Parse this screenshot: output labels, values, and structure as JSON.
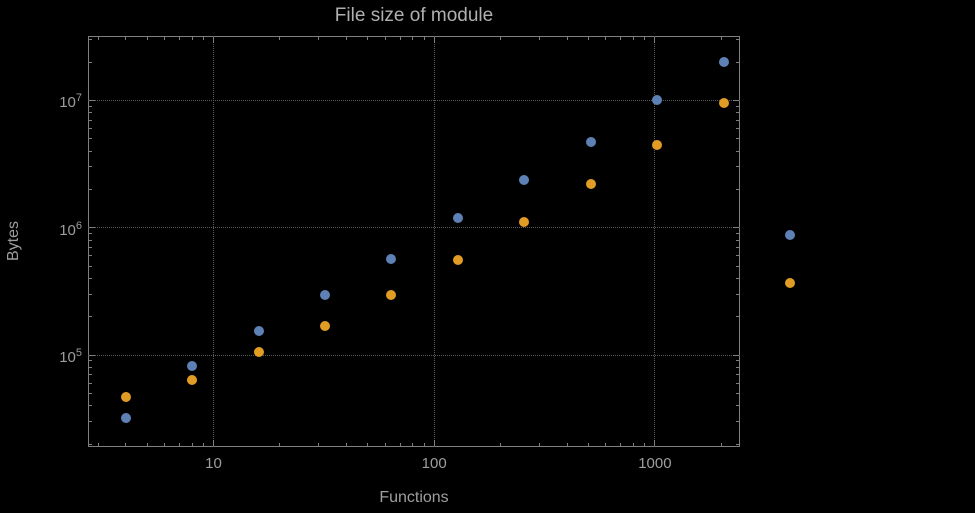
{
  "title": "File size of module",
  "colors": {
    "background": "#000000",
    "frame": "#7f7f7f",
    "gridline": "#5e5e5e",
    "text": "#9e9e9e",
    "title_text": "#b0b0b0",
    "series_blue": "#5e81b5",
    "series_orange": "#e19c24"
  },
  "chart_data": {
    "type": "scatter",
    "title": "File size of module",
    "xlabel": "Functions",
    "ylabel": "Bytes",
    "xscale": "log",
    "yscale": "log",
    "xlim": [
      2.7,
      2430
    ],
    "ylim": [
      19000,
      32000000
    ],
    "grid": "dotted",
    "legend": "none",
    "x_ticks": [
      {
        "value": 10,
        "label": "10"
      },
      {
        "value": 100,
        "label": "100"
      },
      {
        "value": 1000,
        "label": "1000"
      }
    ],
    "y_ticks": [
      {
        "value": 100000,
        "mantissa": "10",
        "exponent": "5"
      },
      {
        "value": 1000000,
        "mantissa": "10",
        "exponent": "6"
      },
      {
        "value": 10000000,
        "mantissa": "10",
        "exponent": "7"
      }
    ],
    "series": [
      {
        "name": "blue",
        "color": "#5e81b5",
        "points": [
          [
            4,
            32000
          ],
          [
            8,
            82000
          ],
          [
            16,
            155000
          ],
          [
            32,
            295000
          ],
          [
            64,
            570000
          ],
          [
            128,
            1200000
          ],
          [
            256,
            2350000
          ],
          [
            512,
            4700000
          ],
          [
            1024,
            10000000
          ],
          [
            2048,
            20000000
          ],
          [
            4096,
            870000
          ]
        ]
      },
      {
        "name": "orange",
        "color": "#e19c24",
        "points": [
          [
            4,
            47000
          ],
          [
            8,
            64000
          ],
          [
            16,
            105000
          ],
          [
            32,
            170000
          ],
          [
            64,
            295000
          ],
          [
            128,
            560000
          ],
          [
            256,
            1100000
          ],
          [
            512,
            2200000
          ],
          [
            1024,
            4500000
          ],
          [
            2048,
            9500000
          ],
          [
            4096,
            370000
          ]
        ]
      }
    ]
  }
}
